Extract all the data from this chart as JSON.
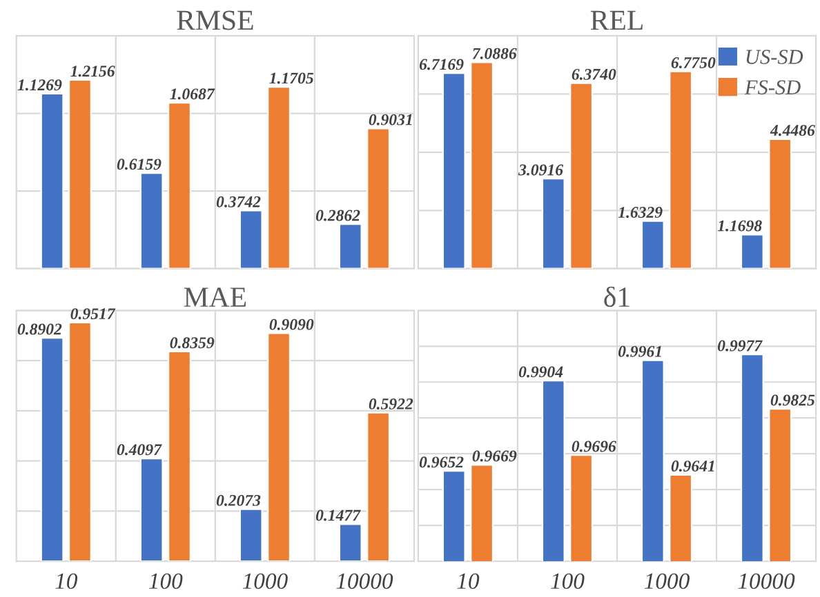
{
  "chart_data": [
    {
      "type": "bar",
      "title": "RMSE",
      "categories": [
        "10",
        "100",
        "1000",
        "10000"
      ],
      "series": [
        {
          "color": "#4472c4",
          "values": [
            1.1269,
            0.6159,
            0.3742,
            0.2862
          ],
          "value_labels": [
            "1.1269",
            "0.6159",
            "0.3742",
            "0.2862"
          ]
        },
        {
          "color": "#ed7d31",
          "values": [
            1.2156,
            1.0687,
            1.1705,
            0.9031
          ],
          "value_labels": [
            "1.2156",
            "1.0687",
            "1.1705",
            "0.9031"
          ]
        }
      ],
      "ylim": [
        0,
        1.5
      ],
      "yticks": [
        {
          "value": 0,
          "label": null
        },
        {
          "value": 0.5,
          "label": null
        },
        {
          "value": 1,
          "label": null
        },
        {
          "value": 1.5,
          "label": null
        }
      ],
      "grid": true,
      "tick_labels": false,
      "legend": false
    },
    {
      "type": "bar",
      "title": "REL",
      "categories": [
        "10",
        "100",
        "1000",
        "10000"
      ],
      "series": [
        {
          "name": "US-SD",
          "color": "#4472c4",
          "values": [
            6.7169,
            3.0916,
            1.6329,
            1.1698
          ],
          "value_labels": [
            "6.7169",
            "3.0916",
            "1.6329",
            "1.1698"
          ]
        },
        {
          "name": "FS-SD",
          "color": "#ed7d31",
          "values": [
            7.0886,
            6.374,
            6.775,
            4.4486
          ],
          "value_labels": [
            "7.0886",
            "6.3740",
            "6.7750",
            "4.4486"
          ]
        }
      ],
      "ylim": [
        0,
        8
      ],
      "yticks": [
        {
          "value": 0,
          "label": null
        },
        {
          "value": 2,
          "label": null
        },
        {
          "value": 4,
          "label": null
        },
        {
          "value": 6,
          "label": null
        },
        {
          "value": 8,
          "label": null
        }
      ],
      "grid": true,
      "tick_labels": false,
      "legend": "top right"
    },
    {
      "type": "bar",
      "title": "MAE",
      "categories": [
        "10",
        "100",
        "1000",
        "10000"
      ],
      "series": [
        {
          "color": "#4472c4",
          "values": [
            0.8902,
            0.4097,
            0.2073,
            0.1477
          ],
          "value_labels": [
            "0.8902",
            "0.4097",
            "0.2073",
            "0.1477"
          ]
        },
        {
          "color": "#ed7d31",
          "values": [
            0.9517,
            0.8359,
            0.909,
            0.5922
          ],
          "value_labels": [
            "0.9517",
            "0.8359",
            "0.9090",
            "0.5922"
          ]
        }
      ],
      "ylim": [
        0,
        1.0
      ],
      "yticks": [
        {
          "value": 0,
          "label": null
        },
        {
          "value": 0.2,
          "label": null
        },
        {
          "value": 0.4,
          "label": null
        },
        {
          "value": 0.6,
          "label": null
        },
        {
          "value": 0.8,
          "label": null
        },
        {
          "value": 1.0,
          "label": null
        }
      ],
      "grid": true,
      "tick_labels": "x",
      "legend": false
    },
    {
      "type": "bar",
      "title": "δ1",
      "categories": [
        "10",
        "100",
        "1000",
        "10000"
      ],
      "series": [
        {
          "color": "#4472c4",
          "values": [
            0.9652,
            0.9904,
            0.9961,
            0.9977
          ],
          "value_labels": [
            "0.9652",
            "0.9904",
            "0.9961",
            "0.9977"
          ]
        },
        {
          "color": "#ed7d31",
          "values": [
            0.9669,
            0.9696,
            0.9641,
            0.9825
          ],
          "value_labels": [
            "0.9669",
            "0.9696",
            "0.9641",
            "0.9825"
          ]
        }
      ],
      "ylim": [
        0.94,
        1.01
      ],
      "yticks": [
        {
          "value": 0.94,
          "label": null
        },
        {
          "value": 0.95,
          "label": null
        },
        {
          "value": 0.96,
          "label": null
        },
        {
          "value": 0.97,
          "label": null
        },
        {
          "value": 0.98,
          "label": null
        },
        {
          "value": 0.99,
          "label": null
        },
        {
          "value": 1.0,
          "label": null
        },
        {
          "value": 1.01,
          "label": null
        }
      ],
      "grid": true,
      "tick_labels": "x",
      "legend": false
    }
  ]
}
